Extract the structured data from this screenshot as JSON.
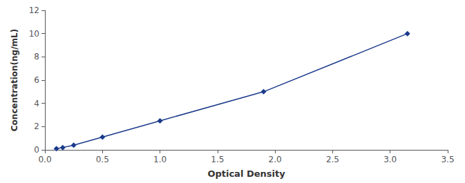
{
  "chart_data": {
    "type": "line",
    "x": [
      0.1,
      0.155,
      0.25,
      0.5,
      1.0,
      1.9,
      3.15
    ],
    "values": [
      0.1,
      0.2,
      0.4,
      1.1,
      2.5,
      5.0,
      10.0
    ],
    "color": "#1a3a8c",
    "marker": "diamond",
    "xlabel": "Optical Density",
    "ylabel": "Concentration(ng/mL)",
    "xlim": [
      0,
      3.5
    ],
    "ylim": [
      0,
      12
    ],
    "xticks": [
      {
        "value": 0,
        "label": "0.0"
      },
      0.5,
      {
        "value": 1.0,
        "label": "1.0"
      },
      1.5,
      {
        "value": 2.0,
        "label": "2.0"
      },
      2.5,
      {
        "value": 3.0,
        "label": "3.0"
      },
      3.5
    ],
    "yticks": [
      0,
      2,
      4,
      6,
      8,
      10,
      12
    ],
    "grid": false
  }
}
